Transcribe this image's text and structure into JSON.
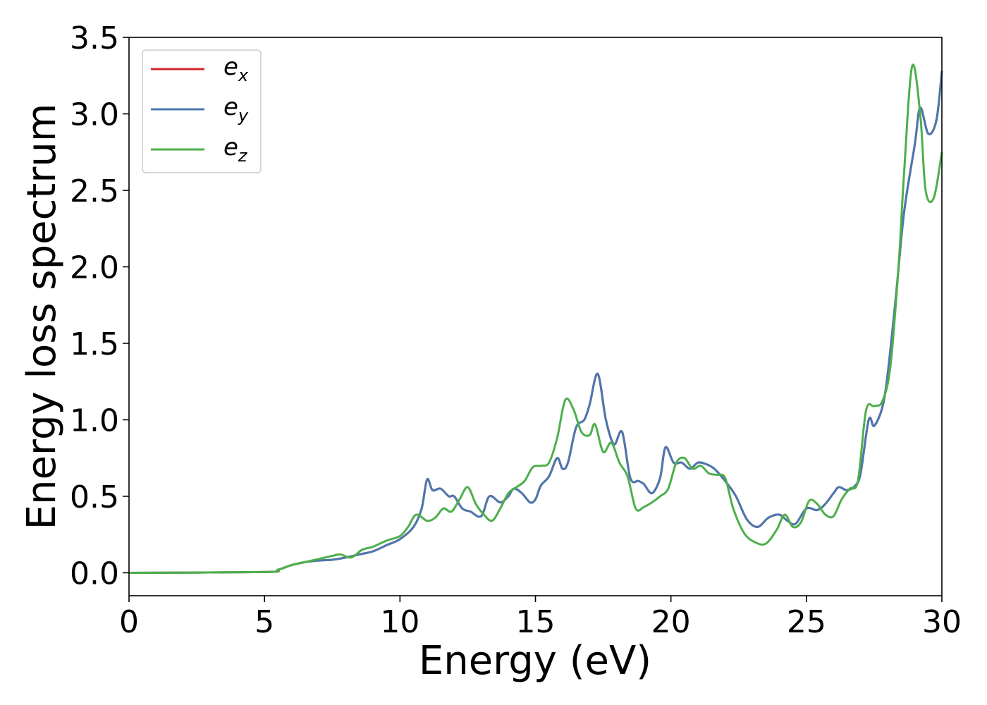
{
  "chart_data": {
    "type": "line",
    "xlabel": "Energy (eV)",
    "ylabel": "Energy loss spectrum",
    "xlim": [
      0,
      30
    ],
    "ylim": [
      -0.15,
      3.5
    ],
    "xticks": [
      0,
      5,
      10,
      15,
      20,
      25,
      30
    ],
    "yticks": [
      0.0,
      0.5,
      1.0,
      1.5,
      2.0,
      2.5,
      3.0,
      3.5
    ],
    "xtick_labels": [
      "0",
      "5",
      "10",
      "15",
      "20",
      "25",
      "30"
    ],
    "ytick_labels": [
      "0.0",
      "0.5",
      "1.0",
      "1.5",
      "2.0",
      "2.5",
      "3.0",
      "3.5"
    ],
    "grid": false,
    "legend_position": "top-left",
    "series": [
      {
        "name": "e_x",
        "legend_base": "e",
        "legend_sub": "x",
        "color": "#d62728",
        "x": [
          0,
          5,
          5.5,
          6,
          6.5,
          7,
          7.5,
          8,
          8.5,
          9,
          9.5,
          10,
          10.5,
          10.8,
          11,
          11.2,
          11.5,
          11.8,
          12,
          12.3,
          12.6,
          13,
          13.3,
          13.7,
          14,
          14.2,
          14.5,
          14.8,
          15,
          15.2,
          15.5,
          15.8,
          16,
          16.2,
          16.5,
          16.8,
          17,
          17.3,
          17.6,
          17.9,
          18.2,
          18.5,
          18.8,
          19,
          19.3,
          19.6,
          19.8,
          20.1,
          20.4,
          20.7,
          21,
          21.3,
          21.6,
          22,
          22.4,
          22.8,
          23.2,
          23.6,
          24,
          24.3,
          24.6,
          25,
          25.4,
          25.7,
          26,
          26.2,
          26.5,
          26.8,
          27,
          27.3,
          27.5,
          27.8,
          28,
          28.3,
          28.6,
          29,
          29.2,
          29.5,
          29.8,
          30
        ],
        "y": [
          0,
          0.005,
          0.02,
          0.05,
          0.07,
          0.08,
          0.085,
          0.1,
          0.12,
          0.14,
          0.18,
          0.22,
          0.3,
          0.42,
          0.61,
          0.54,
          0.55,
          0.5,
          0.5,
          0.42,
          0.4,
          0.37,
          0.5,
          0.46,
          0.5,
          0.55,
          0.52,
          0.46,
          0.48,
          0.57,
          0.63,
          0.75,
          0.68,
          0.72,
          0.95,
          1.0,
          1.1,
          1.3,
          1.0,
          0.84,
          0.92,
          0.62,
          0.6,
          0.58,
          0.52,
          0.62,
          0.82,
          0.72,
          0.72,
          0.68,
          0.72,
          0.71,
          0.68,
          0.6,
          0.5,
          0.35,
          0.3,
          0.36,
          0.38,
          0.34,
          0.32,
          0.42,
          0.41,
          0.45,
          0.52,
          0.56,
          0.54,
          0.57,
          0.65,
          1.0,
          0.96,
          1.08,
          1.3,
          1.8,
          2.35,
          2.8,
          3.04,
          2.87,
          2.96,
          3.28
        ]
      },
      {
        "name": "e_y",
        "legend_base": "e",
        "legend_sub": "y",
        "color": "#4a78b0",
        "x": [
          0,
          5,
          5.5,
          6,
          6.5,
          7,
          7.5,
          8,
          8.5,
          9,
          9.5,
          10,
          10.5,
          10.8,
          11,
          11.2,
          11.5,
          11.8,
          12,
          12.3,
          12.6,
          13,
          13.3,
          13.7,
          14,
          14.2,
          14.5,
          14.8,
          15,
          15.2,
          15.5,
          15.8,
          16,
          16.2,
          16.5,
          16.8,
          17,
          17.3,
          17.6,
          17.9,
          18.2,
          18.5,
          18.8,
          19,
          19.3,
          19.6,
          19.8,
          20.1,
          20.4,
          20.7,
          21,
          21.3,
          21.6,
          22,
          22.4,
          22.8,
          23.2,
          23.6,
          24,
          24.3,
          24.6,
          25,
          25.4,
          25.7,
          26,
          26.2,
          26.5,
          26.8,
          27,
          27.3,
          27.5,
          27.8,
          28,
          28.3,
          28.6,
          29,
          29.2,
          29.5,
          29.8,
          30
        ],
        "y": [
          0,
          0.005,
          0.02,
          0.05,
          0.07,
          0.08,
          0.085,
          0.1,
          0.12,
          0.14,
          0.18,
          0.22,
          0.3,
          0.42,
          0.61,
          0.54,
          0.55,
          0.5,
          0.5,
          0.42,
          0.4,
          0.37,
          0.5,
          0.46,
          0.5,
          0.55,
          0.52,
          0.46,
          0.48,
          0.57,
          0.63,
          0.75,
          0.68,
          0.72,
          0.95,
          1.0,
          1.1,
          1.3,
          1.0,
          0.84,
          0.92,
          0.62,
          0.6,
          0.58,
          0.52,
          0.62,
          0.82,
          0.72,
          0.72,
          0.68,
          0.72,
          0.71,
          0.68,
          0.6,
          0.5,
          0.35,
          0.3,
          0.36,
          0.38,
          0.34,
          0.32,
          0.42,
          0.41,
          0.45,
          0.52,
          0.56,
          0.54,
          0.57,
          0.65,
          1.0,
          0.96,
          1.08,
          1.3,
          1.8,
          2.35,
          2.8,
          3.04,
          2.87,
          2.96,
          3.28
        ]
      },
      {
        "name": "e_z",
        "legend_base": "e",
        "legend_sub": "z",
        "color": "#4daf4a",
        "x": [
          0,
          5,
          5.5,
          6,
          6.5,
          7,
          7.5,
          7.8,
          8.2,
          8.6,
          9,
          9.5,
          10,
          10.3,
          10.6,
          11,
          11.3,
          11.6,
          11.9,
          12.2,
          12.5,
          12.8,
          13.1,
          13.4,
          13.7,
          14,
          14.3,
          14.6,
          14.9,
          15.2,
          15.5,
          15.8,
          16.1,
          16.4,
          16.7,
          17,
          17.2,
          17.5,
          17.8,
          18.1,
          18.4,
          18.7,
          19,
          19.3,
          19.6,
          19.9,
          20.2,
          20.5,
          20.8,
          21.1,
          21.4,
          21.7,
          22,
          22.3,
          22.7,
          23.1,
          23.5,
          23.9,
          24.2,
          24.5,
          24.8,
          25.1,
          25.4,
          25.7,
          26,
          26.3,
          26.6,
          26.9,
          27.2,
          27.5,
          27.8,
          28.1,
          28.4,
          28.6,
          28.9,
          29.2,
          29.4,
          29.7,
          30
        ],
        "y": [
          0,
          0.005,
          0.02,
          0.05,
          0.07,
          0.09,
          0.11,
          0.12,
          0.1,
          0.15,
          0.17,
          0.21,
          0.24,
          0.3,
          0.38,
          0.34,
          0.36,
          0.42,
          0.4,
          0.48,
          0.56,
          0.45,
          0.38,
          0.34,
          0.42,
          0.52,
          0.56,
          0.6,
          0.69,
          0.7,
          0.72,
          0.88,
          1.13,
          1.07,
          0.92,
          0.9,
          0.97,
          0.79,
          0.85,
          0.72,
          0.63,
          0.42,
          0.43,
          0.46,
          0.5,
          0.55,
          0.72,
          0.75,
          0.68,
          0.7,
          0.65,
          0.64,
          0.62,
          0.42,
          0.26,
          0.2,
          0.19,
          0.28,
          0.38,
          0.3,
          0.33,
          0.47,
          0.45,
          0.38,
          0.37,
          0.48,
          0.55,
          0.6,
          1.06,
          1.09,
          1.12,
          1.35,
          2.0,
          2.6,
          3.31,
          3.0,
          2.5,
          2.45,
          2.75
        ]
      }
    ]
  }
}
